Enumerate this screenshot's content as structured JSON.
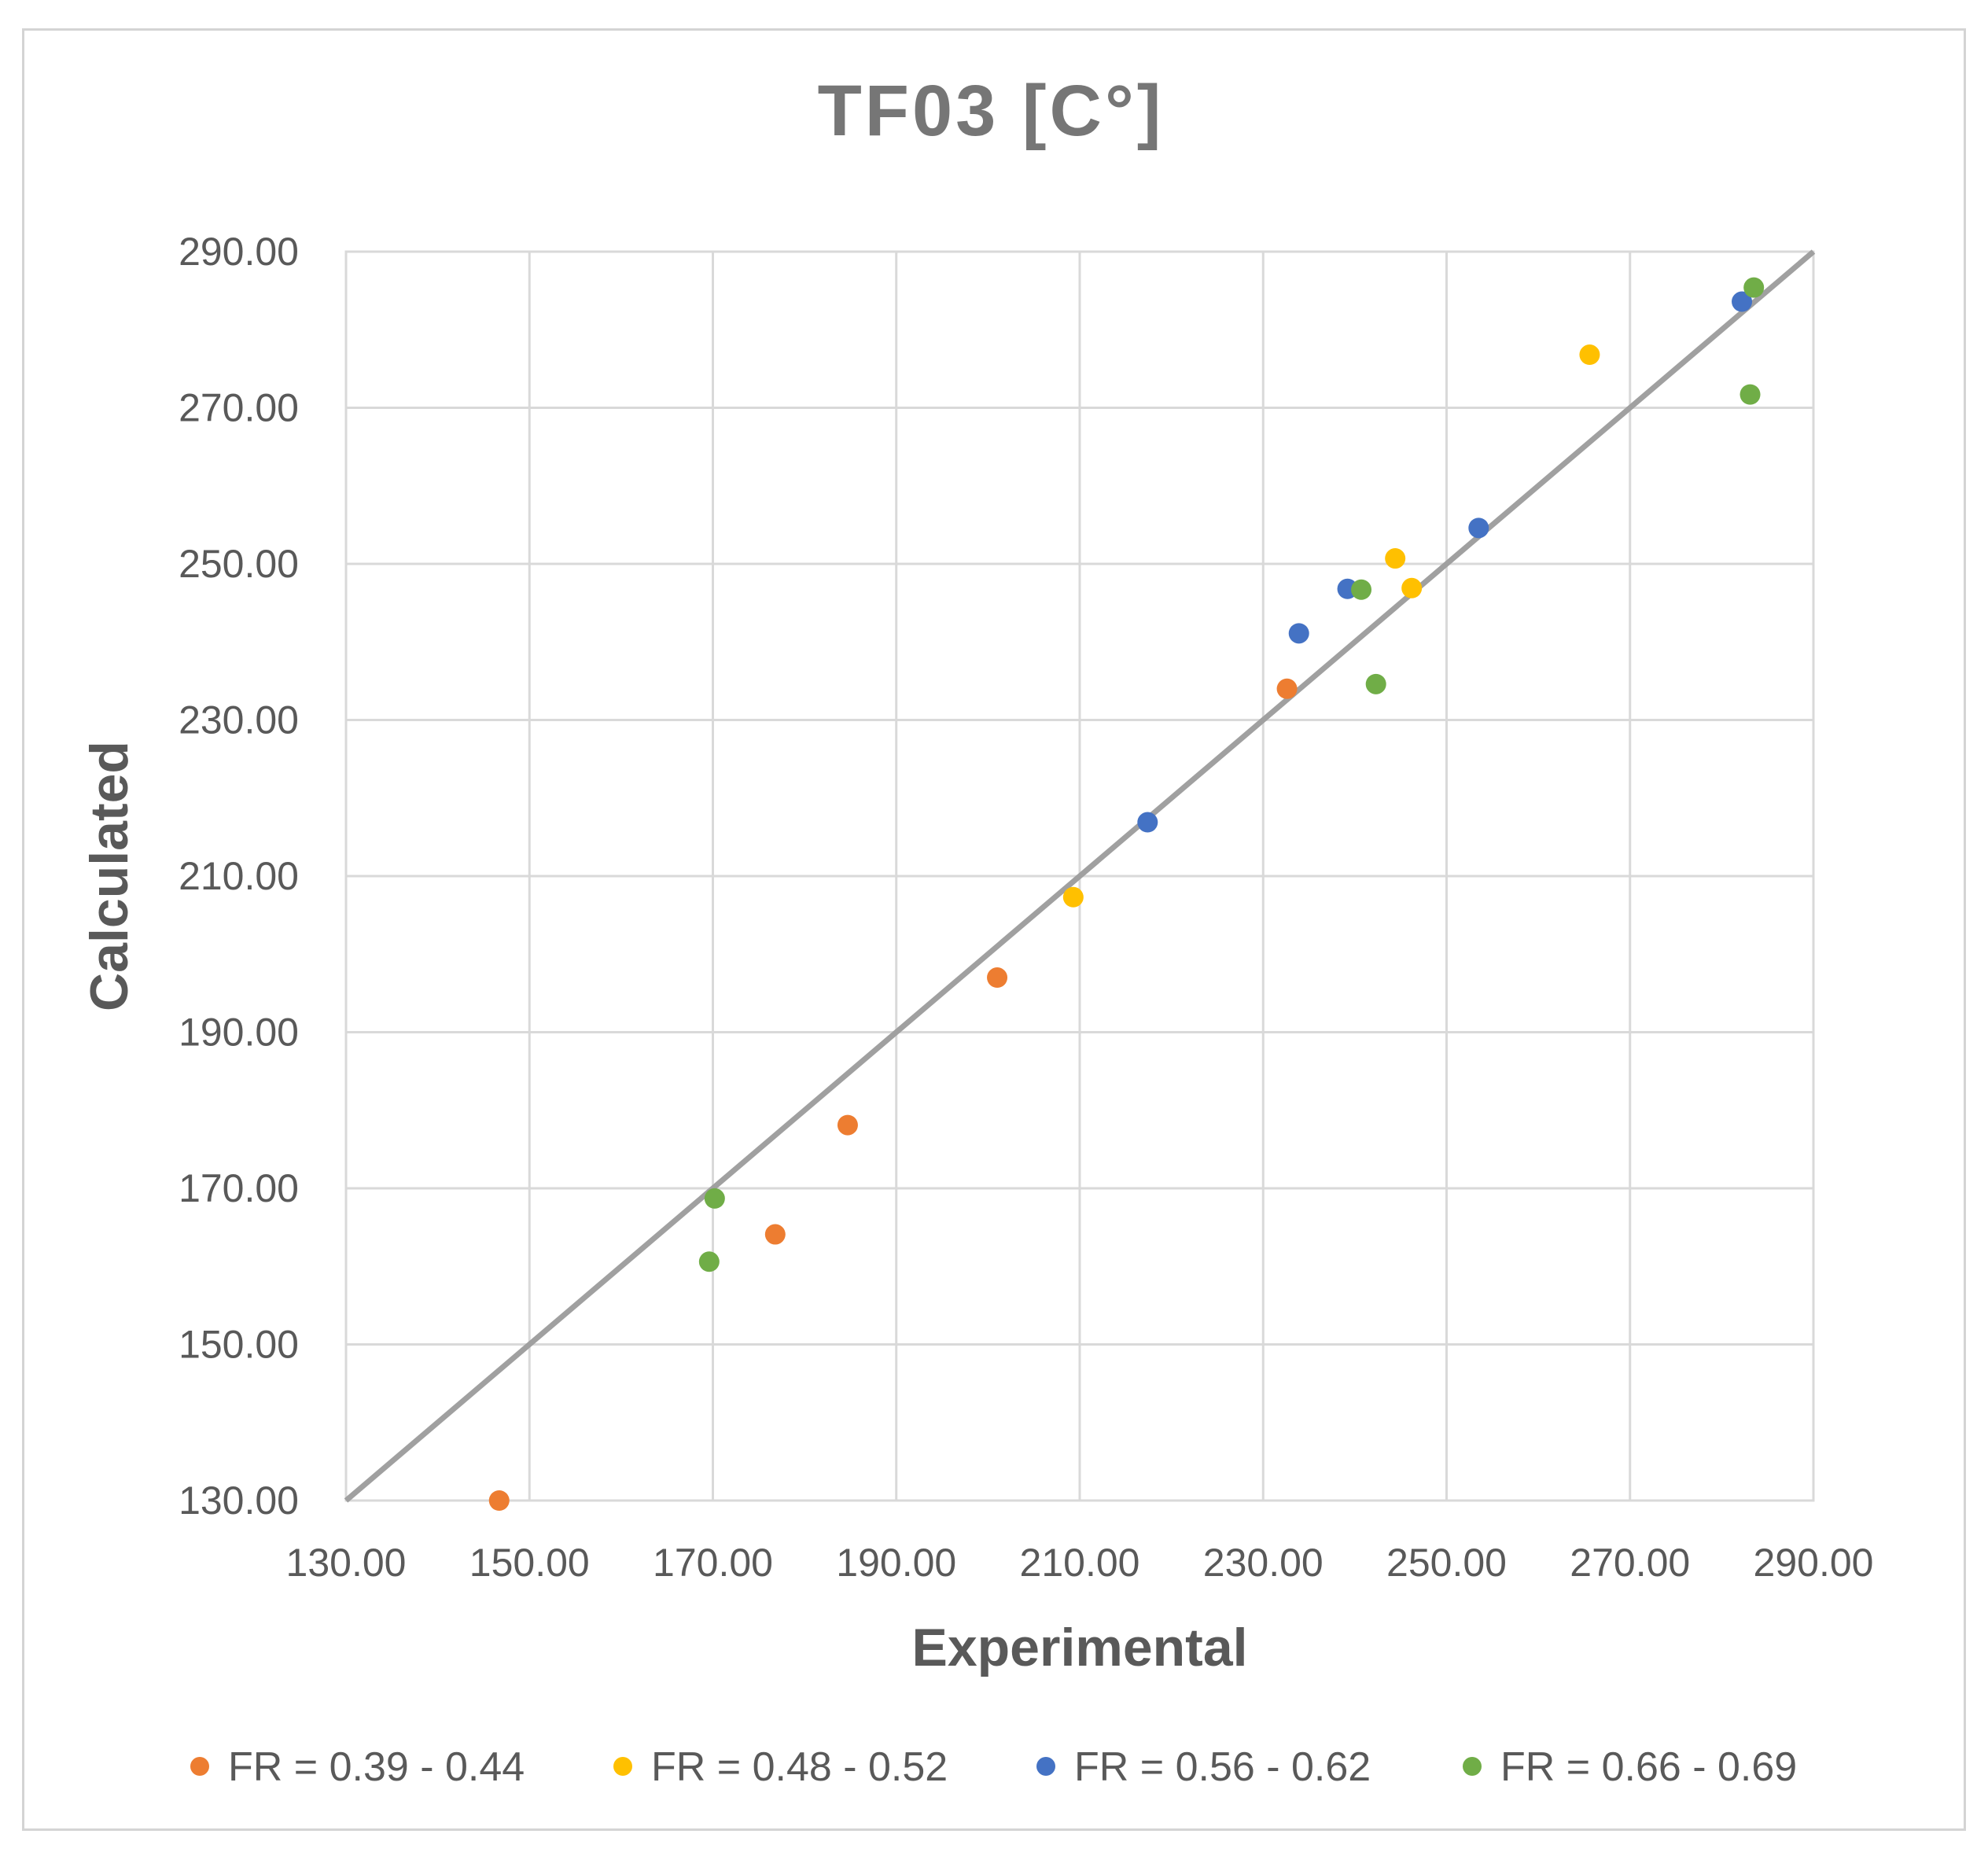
{
  "chart_data": {
    "type": "scatter",
    "title": "TF03 [C°]",
    "xlabel": "Experimental",
    "ylabel": "Calculated",
    "xlim": [
      130,
      290
    ],
    "ylim": [
      130,
      290
    ],
    "x_ticks": [
      "130.00",
      "150.00",
      "170.00",
      "190.00",
      "210.00",
      "230.00",
      "250.00",
      "270.00",
      "290.00"
    ],
    "y_ticks": [
      "130.00",
      "150.00",
      "170.00",
      "190.00",
      "210.00",
      "230.00",
      "250.00",
      "270.00",
      "290.00"
    ],
    "grid": true,
    "legend_position": "bottom",
    "reference_line": {
      "from": [
        130,
        130
      ],
      "to": [
        290,
        290
      ]
    },
    "series": [
      {
        "name": "FR = 0.39 - 0.44",
        "color": "#ed7d31",
        "points": [
          [
            146.7,
            130.0
          ],
          [
            176.8,
            164.1
          ],
          [
            184.7,
            178.1
          ],
          [
            201.0,
            197.0
          ],
          [
            232.6,
            234.0
          ]
        ]
      },
      {
        "name": "FR = 0.48 - 0.52",
        "color": "#ffc000",
        "points": [
          [
            209.3,
            207.3
          ],
          [
            244.4,
            250.7
          ],
          [
            246.2,
            246.9
          ],
          [
            265.6,
            276.8
          ]
        ]
      },
      {
        "name": "FR = 0.56 - 0.62",
        "color": "#4472c4",
        "points": [
          [
            217.4,
            216.9
          ],
          [
            233.9,
            241.1
          ],
          [
            239.2,
            246.8
          ],
          [
            253.5,
            254.6
          ],
          [
            282.2,
            283.6
          ]
        ]
      },
      {
        "name": "FR = 0.66 - 0.69",
        "color": "#70ad47",
        "points": [
          [
            169.6,
            160.6
          ],
          [
            170.2,
            168.7
          ],
          [
            240.7,
            246.7
          ],
          [
            242.3,
            234.6
          ],
          [
            283.1,
            271.7
          ],
          [
            283.5,
            285.4
          ]
        ]
      }
    ]
  }
}
